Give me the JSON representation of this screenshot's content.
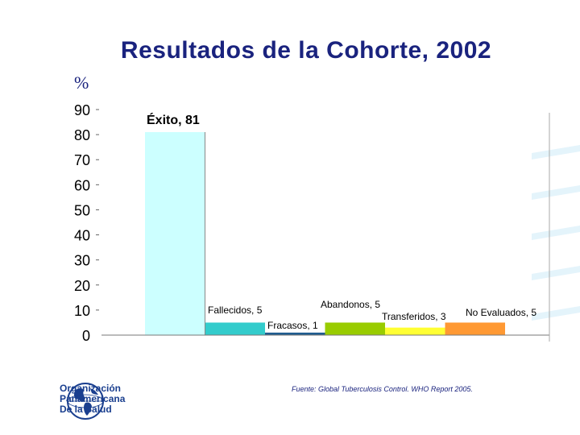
{
  "slide": {
    "title": "Resultados de la Cohorte, 2002",
    "unit_label": "%",
    "source": "Fuente: Global Tuberculosis Control. WHO Report 2005.",
    "logo_lines": [
      "Organización",
      "Panamericana",
      "De la Salud"
    ],
    "logo_icon": "globe-icon"
  },
  "chart_data": {
    "type": "bar",
    "title": "Resultados de la Cohorte, 2002",
    "ylabel": "%",
    "xlabel": "",
    "ylim": [
      0,
      90
    ],
    "yticks": [
      0,
      10,
      20,
      30,
      40,
      50,
      60,
      70,
      80,
      90
    ],
    "grid": false,
    "categories": [
      "Éxito",
      "Fallecidos",
      "Fracasos",
      "Abandonos",
      "Transferidos",
      "No Evaluados"
    ],
    "values": [
      81,
      5,
      1,
      5,
      3,
      5
    ],
    "labels": [
      "Éxito, 81",
      "Fallecidos, 5",
      "Fracasos, 1",
      "Abandonos, 5",
      "Transferidos, 3",
      "No Evaluados, 5"
    ],
    "colors": [
      "#ccffff",
      "#33cccc",
      "#1f5c8f",
      "#99cc00",
      "#ffff33",
      "#ff9933"
    ]
  }
}
